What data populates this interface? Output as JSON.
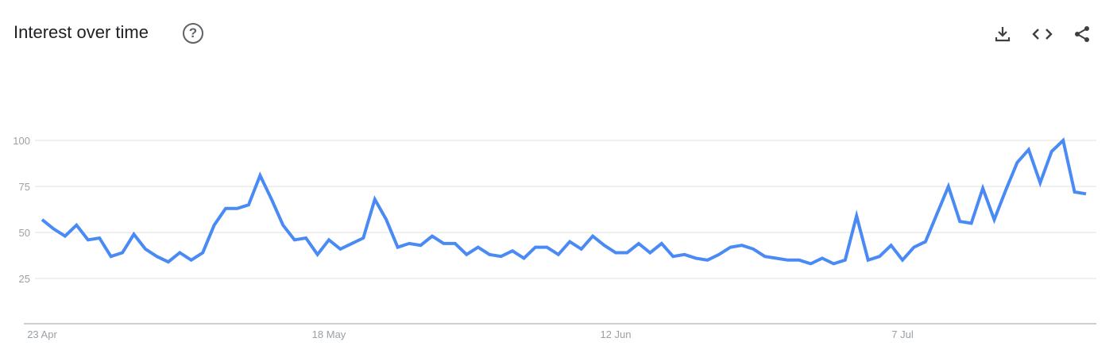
{
  "header": {
    "title": "Interest over time",
    "help_icon": "help-circle-icon",
    "actions": [
      {
        "name": "download-icon"
      },
      {
        "name": "embed-code-icon"
      },
      {
        "name": "share-icon"
      }
    ]
  },
  "colors": {
    "line": "#4A8AF4",
    "grid": "#E0E0E0",
    "axis": "#BDBDBD",
    "tick": "#9AA0A6"
  },
  "chart_data": {
    "type": "line",
    "title": "",
    "xlabel": "",
    "ylabel": "",
    "ylim": [
      0,
      100
    ],
    "grid": true,
    "yticks": [
      25,
      50,
      75,
      100
    ],
    "xticks": [
      {
        "label": "23 Apr",
        "index": 0
      },
      {
        "label": "18 May",
        "index": 25
      },
      {
        "label": "12 Jun",
        "index": 50
      },
      {
        "label": "7 Jul",
        "index": 75
      }
    ],
    "x_start": "23 Apr",
    "x_end": "23 Jul",
    "x_step": "1 day",
    "values": [
      57,
      52,
      48,
      54,
      46,
      47,
      37,
      39,
      49,
      41,
      37,
      34,
      39,
      35,
      39,
      54,
      63,
      63,
      65,
      81,
      68,
      54,
      46,
      47,
      38,
      46,
      41,
      44,
      47,
      68,
      57,
      42,
      44,
      43,
      48,
      44,
      44,
      38,
      42,
      38,
      37,
      40,
      36,
      42,
      42,
      38,
      45,
      41,
      48,
      43,
      39,
      39,
      44,
      39,
      44,
      37,
      38,
      36,
      35,
      38,
      42,
      43,
      41,
      37,
      36,
      35,
      35,
      33,
      36,
      33,
      35,
      59,
      35,
      37,
      43,
      35,
      42,
      45,
      60,
      75,
      56,
      55,
      74,
      57,
      73,
      88,
      95,
      77,
      94,
      100,
      72,
      71
    ]
  }
}
